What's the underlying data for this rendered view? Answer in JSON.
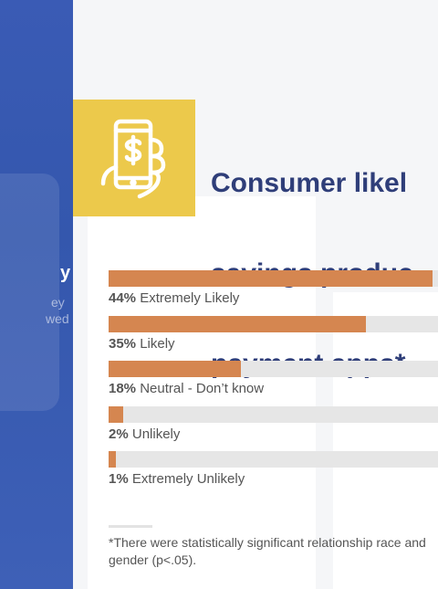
{
  "title_lines": [
    "Consumer likel",
    "savings produc",
    "payment apps*"
  ],
  "left_panel_fragments": [
    "y",
    "ey",
    "wed"
  ],
  "chart_data": {
    "type": "bar",
    "orientation": "horizontal",
    "title": "Consumer likel savings produc payment apps*",
    "xlim": [
      0,
      44
    ],
    "categories": [
      "Extremely Likely",
      "Likely",
      "Neutral - Don’t know",
      "Unlikely",
      "Extremely Unlikely"
    ],
    "values": [
      44,
      35,
      18,
      2,
      1
    ],
    "labels": [
      "44%",
      "35%",
      "18%",
      "2%",
      "1%"
    ]
  },
  "footnote": "*There were statistically significant relationship race and gender (p<.05).",
  "colors": {
    "accent_bar": "#d58650",
    "track": "#e6e6e6",
    "title": "#2f3e79",
    "icon_box": "#ecc94b",
    "left_panel": "#3a5bb5"
  },
  "icon": "phone-with-dollar-in-hand-icon"
}
